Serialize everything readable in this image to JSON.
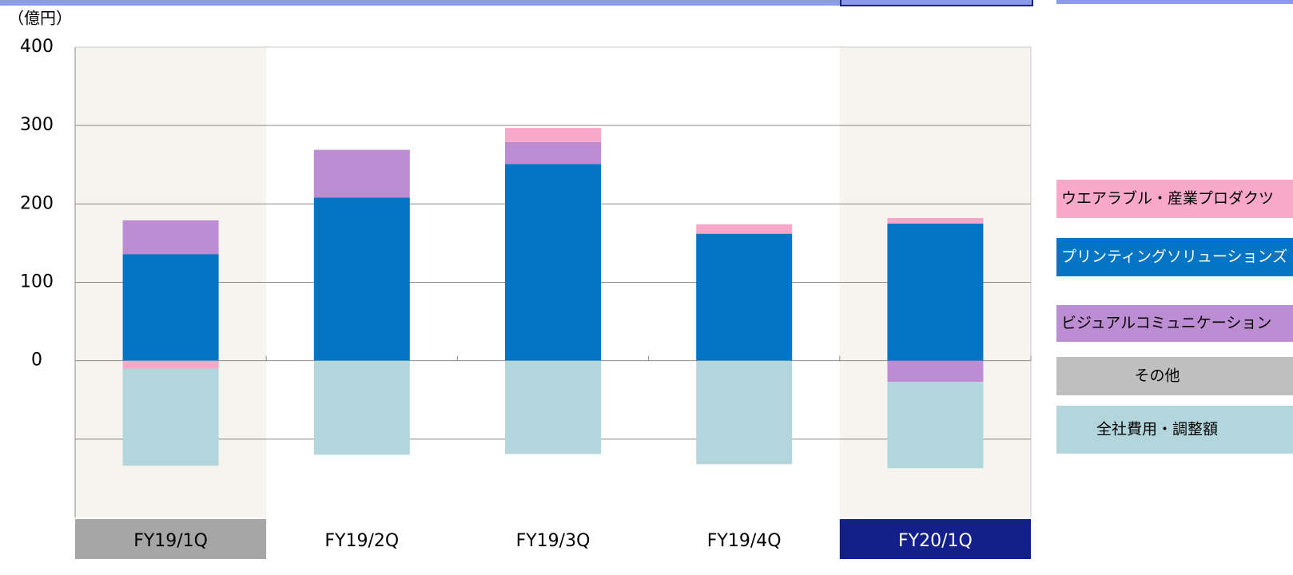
{
  "chart_data": {
    "type": "stacked_bar",
    "unit_label": "（億円）",
    "categories": [
      "FY19/1Q",
      "FY19/2Q",
      "FY19/3Q",
      "FY19/4Q",
      "FY20/1Q"
    ],
    "series": [
      {
        "name": "ウエアラブル・産業プロダクツ",
        "color": "#f9a8c9",
        "values": [
          -10,
          0,
          18,
          12,
          7
        ]
      },
      {
        "name": "プリンティングソリューションズ",
        "color": "#0474c4",
        "values": [
          136,
          208,
          251,
          162,
          175
        ]
      },
      {
        "name": "ビジュアルコミュニケーション",
        "color": "#bd8dd4",
        "values": [
          43,
          61,
          28,
          0,
          -27
        ]
      },
      {
        "name": "その他",
        "color": "#bfbfbf",
        "values": [
          0,
          0,
          0,
          0,
          0
        ]
      },
      {
        "name": "全社費用・調整額",
        "color": "#b3d5dc",
        "values": [
          -124,
          -120,
          -119,
          -132,
          -110
        ]
      }
    ],
    "ylim": [
      -200,
      400
    ],
    "yticks": [
      {
        "value": -100,
        "label": null
      },
      0,
      100,
      200,
      300,
      400
    ],
    "grid": true
  }
}
